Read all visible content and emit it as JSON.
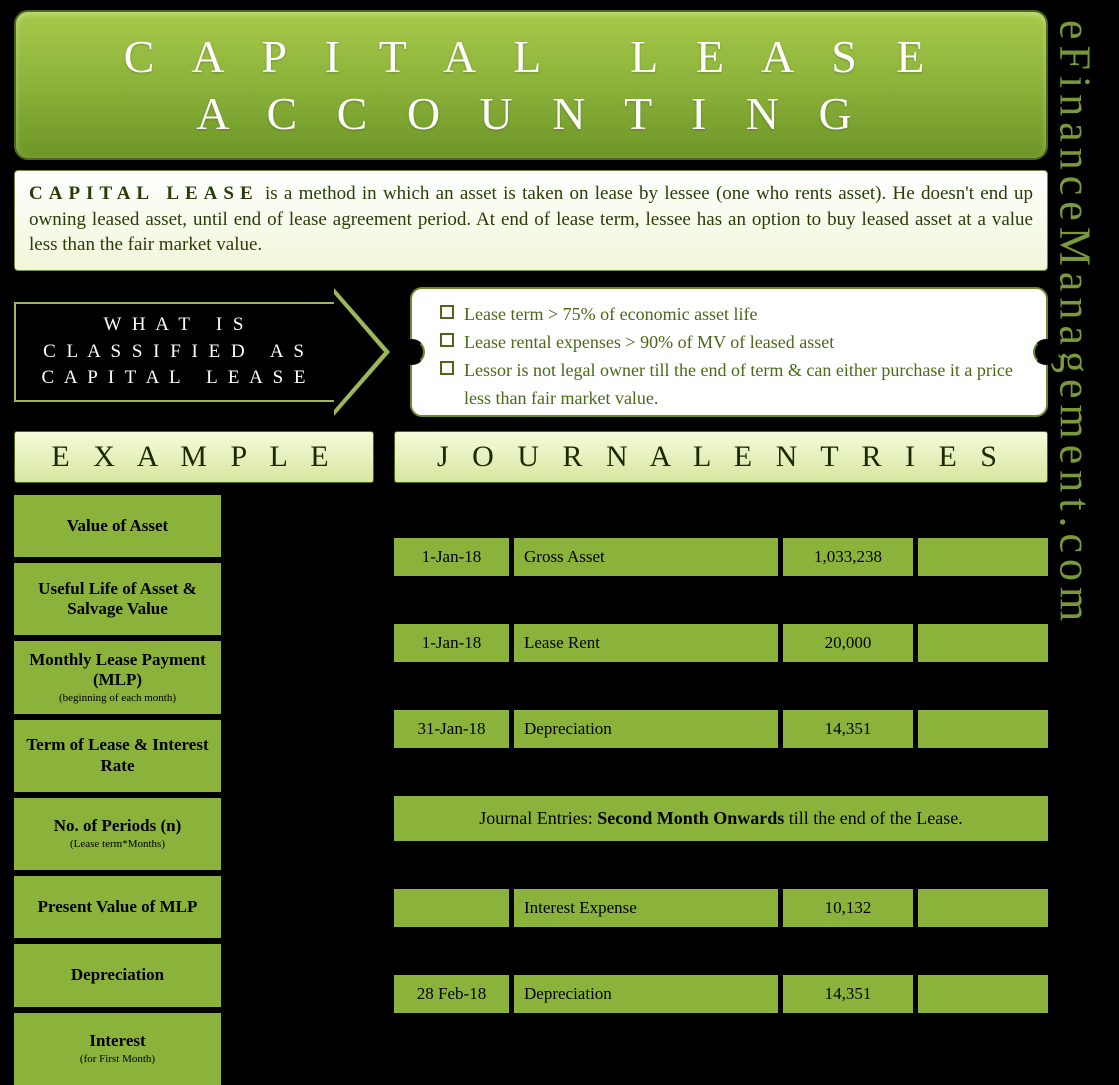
{
  "title": "CAPITAL LEASE ACCOUNTING",
  "sidebar": "eFinanceManagement.com",
  "definition": {
    "bold": "CAPITAL LEASE",
    "text": " is a method in which an asset is taken on lease by lessee (one who rents asset). He doesn't end up owning leased asset, until end of lease agreement period. At end of lease term, lessee has an option to buy leased asset at a value less than the fair market value."
  },
  "arrow_label": "WHAT IS CLASSIFIED AS CAPITAL LEASE",
  "criteria": [
    "Lease term > 75% of economic asset life",
    "Lease rental expenses > 90% of MV of leased asset",
    "Lessor is not legal owner till the end of term & can either purchase it a price less than fair market value."
  ],
  "section_headers": {
    "left": "EXAMPLE",
    "right": "JOURNAL ENTRIES"
  },
  "example_rows": [
    {
      "label": "Value of Asset",
      "sub": ""
    },
    {
      "label": "Useful Life of Asset & Salvage Value",
      "sub": ""
    },
    {
      "label": "Monthly Lease Payment (MLP)",
      "sub": "(beginning of each month)"
    },
    {
      "label": "Term of Lease & Interest Rate",
      "sub": ""
    },
    {
      "label": "No. of Periods (n)",
      "sub": "(Lease term*Months)"
    },
    {
      "label": "Present Value of MLP",
      "sub": ""
    },
    {
      "label": "Depreciation",
      "sub": ""
    },
    {
      "label": "Interest",
      "sub": "(for First Month)"
    }
  ],
  "journal": {
    "rows": [
      {
        "type": "black"
      },
      {
        "date": "1-Jan-18",
        "part": "Gross Asset",
        "dr": "1,033,238",
        "cr": ""
      },
      {
        "type": "black"
      },
      {
        "date": "1-Jan-18",
        "part": "Lease Rent",
        "dr": "20,000",
        "cr": ""
      },
      {
        "type": "black"
      },
      {
        "date": "31-Jan-18",
        "part": "Depreciation",
        "dr": "14,351",
        "cr": ""
      },
      {
        "type": "black"
      }
    ],
    "note_prefix": "Journal Entries:  ",
    "note_bold": "Second Month Onwards",
    "note_suffix": " till the end of the Lease.",
    "rows2": [
      {
        "type": "black"
      },
      {
        "date": "",
        "part": "Interest Expense",
        "dr": "10,132",
        "cr": ""
      },
      {
        "type": "black"
      },
      {
        "date": "28 Feb-18",
        "part": "Depreciation",
        "dr": "14,351",
        "cr": ""
      },
      {
        "type": "black"
      }
    ]
  }
}
